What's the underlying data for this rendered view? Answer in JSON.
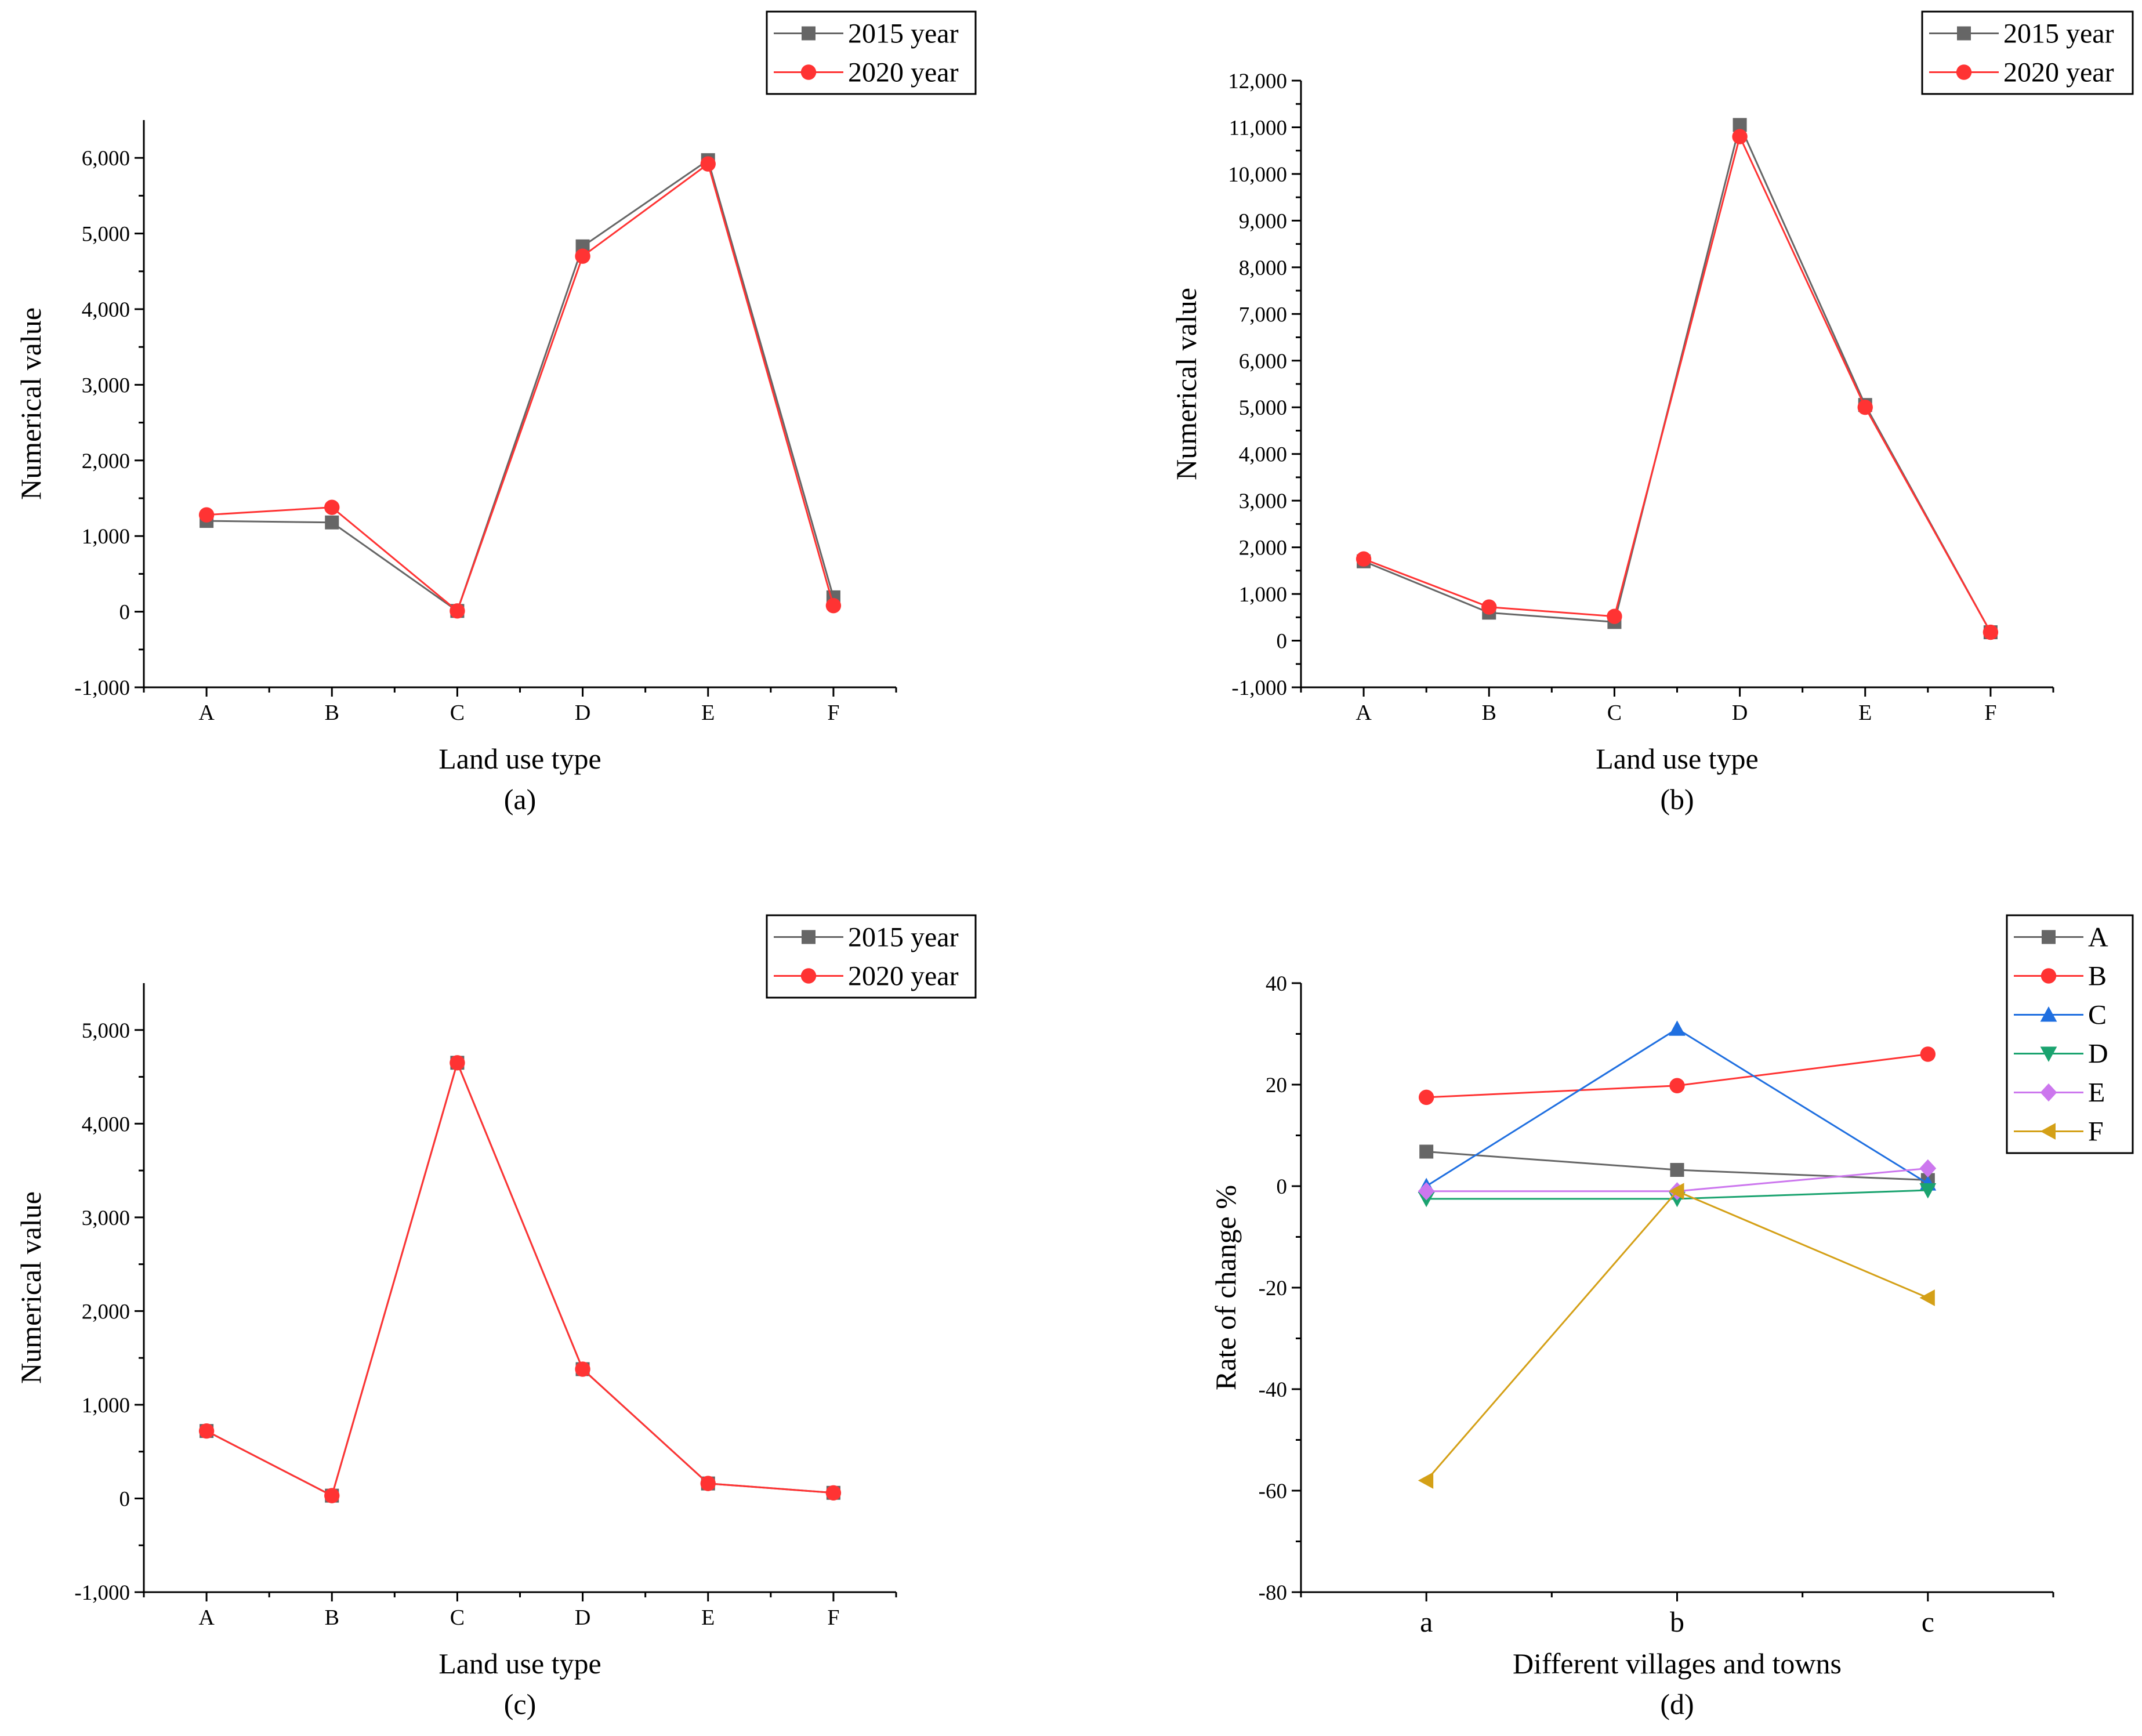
{
  "chart_data": [
    {
      "type": "line",
      "panel_label": "(a)",
      "xlabel": "Land use type",
      "ylabel": "Numerical value",
      "categories": [
        "A",
        "B",
        "C",
        "D",
        "E",
        "F"
      ],
      "ylim": [
        -1000,
        6500
      ],
      "yticks": [
        -1000,
        0,
        1000,
        2000,
        3000,
        4000,
        5000,
        6000
      ],
      "ytick_labels": [
        "-1,000",
        "0",
        "1,000",
        "2,000",
        "3,000",
        "4,000",
        "5,000",
        "6,000"
      ],
      "legend_position": "top-right",
      "series": [
        {
          "name": "2015 year",
          "color": "#666666",
          "marker": "square",
          "values": [
            1200,
            1180,
            10,
            4830,
            5970,
            190
          ]
        },
        {
          "name": "2020 year",
          "color": "#ff3333",
          "marker": "circle",
          "values": [
            1280,
            1380,
            10,
            4700,
            5920,
            80
          ]
        }
      ]
    },
    {
      "type": "line",
      "panel_label": "(b)",
      "xlabel": "Land use type",
      "ylabel": "Numerical value",
      "categories": [
        "A",
        "B",
        "C",
        "D",
        "E",
        "F"
      ],
      "ylim": [
        -1000,
        12000
      ],
      "yticks": [
        -1000,
        0,
        1000,
        2000,
        3000,
        4000,
        5000,
        6000,
        7000,
        8000,
        9000,
        10000,
        11000,
        12000
      ],
      "ytick_labels": [
        "-1,000",
        "0",
        "1,000",
        "2,000",
        "3,000",
        "4,000",
        "5,000",
        "6,000",
        "7,000",
        "8,000",
        "9,000",
        "10,000",
        "11,000",
        "12,000"
      ],
      "legend_position": "top-right",
      "series": [
        {
          "name": "2015 year",
          "color": "#666666",
          "marker": "square",
          "values": [
            1700,
            600,
            400,
            11050,
            5050,
            180
          ]
        },
        {
          "name": "2020 year",
          "color": "#ff3333",
          "marker": "circle",
          "values": [
            1750,
            720,
            520,
            10800,
            5000,
            180
          ]
        }
      ]
    },
    {
      "type": "line",
      "panel_label": "(c)",
      "xlabel": "Land use type",
      "ylabel": "Numerical value",
      "categories": [
        "A",
        "B",
        "C",
        "D",
        "E",
        "F"
      ],
      "ylim": [
        -1000,
        5500
      ],
      "yticks": [
        -1000,
        0,
        1000,
        2000,
        3000,
        4000,
        5000
      ],
      "ytick_labels": [
        "-1,000",
        "0",
        "1,000",
        "2,000",
        "3,000",
        "4,000",
        "5,000"
      ],
      "legend_position": "top-right",
      "series": [
        {
          "name": "2015 year",
          "color": "#666666",
          "marker": "square",
          "values": [
            720,
            30,
            4650,
            1380,
            160,
            60
          ]
        },
        {
          "name": "2020 year",
          "color": "#ff3333",
          "marker": "circle",
          "values": [
            720,
            30,
            4650,
            1380,
            160,
            60
          ]
        }
      ]
    },
    {
      "type": "line",
      "panel_label": "(d)",
      "xlabel": "Different villages and towns",
      "ylabel": "Rate of change %",
      "categories": [
        "a",
        "b",
        "c"
      ],
      "ylim": [
        -80,
        40
      ],
      "yticks": [
        -80,
        -60,
        -40,
        -20,
        0,
        20,
        40
      ],
      "ytick_labels": [
        "-80",
        "-60",
        "-40",
        "-20",
        "0",
        "20",
        "40"
      ],
      "legend_position": "top-right",
      "series": [
        {
          "name": "A",
          "color": "#666666",
          "marker": "square",
          "values": [
            6.8,
            3.2,
            1.2
          ]
        },
        {
          "name": "B",
          "color": "#ff3333",
          "marker": "circle",
          "values": [
            17.5,
            19.8,
            26.0
          ]
        },
        {
          "name": "C",
          "color": "#1f6fe0",
          "marker": "triangle-up",
          "values": [
            0,
            31.0,
            0.5
          ]
        },
        {
          "name": "D",
          "color": "#1aa36f",
          "marker": "triangle-down",
          "values": [
            -2.5,
            -2.5,
            -0.8
          ]
        },
        {
          "name": "E",
          "color": "#cc77ee",
          "marker": "diamond",
          "values": [
            -1.0,
            -1.0,
            3.5
          ]
        },
        {
          "name": "F",
          "color": "#d4a017",
          "marker": "triangle-left",
          "values": [
            -58.0,
            -1.0,
            -22.0
          ]
        }
      ]
    }
  ]
}
